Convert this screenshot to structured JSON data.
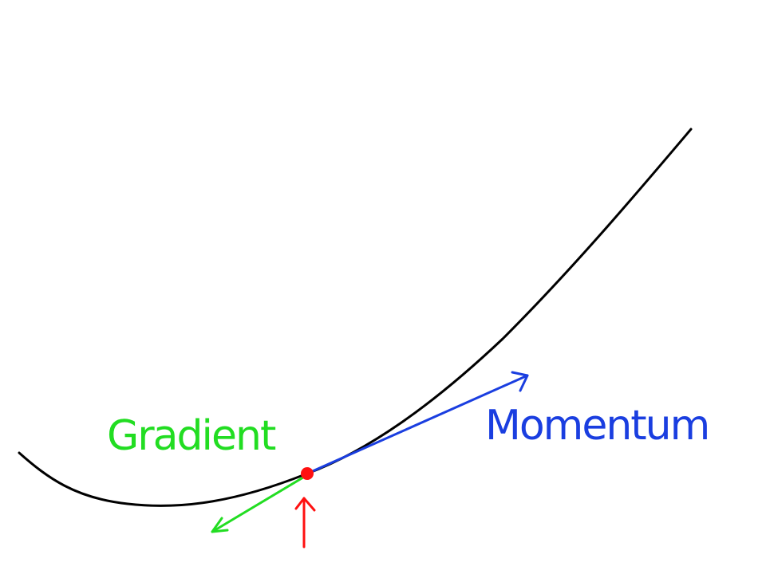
{
  "labels": {
    "gradient": "Gradient",
    "momentum": "Momentum"
  },
  "colors": {
    "curve": "#000000",
    "gradient": "#22dd22",
    "momentum": "#1a3ee0",
    "point": "#ff1010",
    "marker": "#ff1010"
  }
}
